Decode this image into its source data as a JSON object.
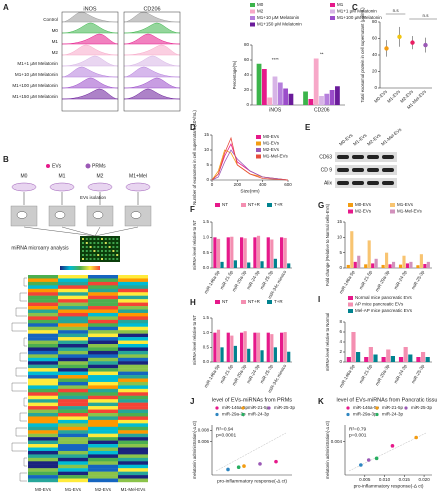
{
  "figure": {
    "panel_letters": [
      "A",
      "B",
      "C",
      "D",
      "E",
      "F",
      "G",
      "H",
      "I",
      "J",
      "K"
    ],
    "flow": {
      "headers": [
        "iNOS",
        "CD206"
      ],
      "rows": [
        "Control",
        "M0",
        "M1",
        "M2",
        "M1+1 μM Melatonin",
        "M1+10 μM Melatonin",
        "M1+100 μM Melatonin",
        "M1+150 μM Melatonin"
      ]
    },
    "diagram": {
      "legend": [
        "EVs",
        "PRMs"
      ],
      "groups": [
        "M0",
        "M1",
        "M2",
        "M1+Mel"
      ],
      "step": "EVs isolation",
      "analysis": "miRNA microarry analysis"
    },
    "heatmap": {
      "columns": [
        "M0-EVs",
        "M1-EVs",
        "M2-EVs",
        "M1-Mel-EVs"
      ]
    },
    "blot": {
      "lanes": [
        "M0-EVs",
        "M1-EVs",
        "M2-EVs",
        "M1-Mel-EVs"
      ],
      "rows": [
        "CD63",
        "CD 9",
        "Alix"
      ]
    }
  },
  "chart_data": [
    {
      "type": "bar",
      "ylabel": "Percentage(%)",
      "categories": [
        "iNOS",
        "CD206"
      ],
      "series": [
        {
          "name": "M0",
          "color": "#3cb44b",
          "values": [
            55,
            18
          ]
        },
        {
          "name": "M1",
          "color": "#e6198a",
          "values": [
            48,
            8
          ]
        },
        {
          "name": "M2",
          "color": "#f7a8c8",
          "values": [
            10,
            62
          ]
        },
        {
          "name": "M1+1 μM Melatonin",
          "color": "#d7b4e6",
          "values": [
            38,
            12
          ]
        },
        {
          "name": "M1+10 μM Melatonin",
          "color": "#b57edc",
          "values": [
            30,
            15
          ]
        },
        {
          "name": "M1+100 μM Melatonin",
          "color": "#9b4dca",
          "values": [
            22,
            20
          ]
        },
        {
          "name": "M1+150 μM Melatonin",
          "color": "#6a1b9a",
          "values": [
            15,
            25
          ]
        }
      ],
      "ylim": [
        0,
        80
      ],
      "yticks": [
        0,
        20,
        40,
        60,
        80
      ],
      "annotations": [
        "****",
        "**"
      ]
    },
    {
      "type": "dot",
      "ylabel": "Total exosomal protein in cell supernatant (μg/mL)",
      "categories": [
        "M0-EVs",
        "M1-EVs",
        "M2-EVs",
        "M1-Mel-EVs"
      ],
      "values": [
        48,
        62,
        55,
        52
      ],
      "errors": [
        10,
        12,
        8,
        9
      ],
      "colors": [
        "#f39c12",
        "#f1c40f",
        "#e91e63",
        "#9b59b6"
      ],
      "ylim": [
        0,
        80
      ],
      "yticks": [
        0,
        20,
        40,
        60,
        80
      ],
      "annotations": [
        "n.s",
        "n.s"
      ]
    },
    {
      "type": "line",
      "xlabel": "Size(nm)",
      "ylabel": "Number of exosomes in cell supernatant (10⁸/mL)",
      "x": [
        0,
        50,
        100,
        150,
        200,
        300,
        400,
        600
      ],
      "series": [
        {
          "name": "M0-EVs",
          "color": "#e6198a",
          "values": [
            0,
            2,
            8,
            12,
            6,
            3,
            1,
            0
          ]
        },
        {
          "name": "M1-EVs",
          "color": "#f39c12",
          "values": [
            0,
            3,
            10,
            9,
            5,
            2,
            1,
            0
          ]
        },
        {
          "name": "M2-EVs",
          "color": "#9b59b6",
          "values": [
            0,
            1,
            6,
            10,
            7,
            3,
            1,
            0
          ]
        },
        {
          "name": "M1-Mel-EVs",
          "color": "#e74c3c",
          "values": [
            0,
            2,
            9,
            14,
            5,
            2,
            0.5,
            0
          ]
        }
      ],
      "xlim": [
        0,
        600
      ],
      "xticks": [
        0,
        200,
        400,
        600
      ],
      "ylim": [
        0,
        15
      ],
      "yticks": [
        0,
        5,
        10,
        15
      ]
    },
    {
      "type": "bar",
      "ylabel": "miRNA level relative to NT",
      "categories": [
        "miR-146a-5p",
        "miR-21-5p",
        "miR-29a-3p",
        "miR-24-3p",
        "miR-25-3p",
        "miR-34c mimics"
      ],
      "series": [
        {
          "name": "NT",
          "color": "#e6198a",
          "values": [
            1,
            1,
            1,
            1,
            1,
            1
          ]
        },
        {
          "name": "NT+R",
          "color": "#f48fb1",
          "values": [
            0.95,
            1.02,
            0.97,
            1.05,
            0.93,
            0.98
          ]
        },
        {
          "name": "T+R",
          "color": "#00838f",
          "values": [
            0.2,
            0.25,
            0.18,
            0.22,
            0.3,
            0.15
          ]
        }
      ],
      "ylim": [
        0,
        1.5
      ],
      "yticks": [
        {
          "value": 0,
          "label": "0.0"
        },
        0.5,
        {
          "value": 1,
          "label": "1.0"
        },
        1.5
      ]
    },
    {
      "type": "bar",
      "ylabel": "Fold change (Relative to Normal cells-EVs)",
      "categories": [
        "miR-146a-5p",
        "miR-21-5p",
        "miR-29a-3p",
        "miR-24-3p",
        "miR-25-3p"
      ],
      "series": [
        {
          "name": "M0-EVs",
          "color": "#f39c12",
          "values": [
            1,
            1.2,
            1,
            1.1,
            0.9
          ]
        },
        {
          "name": "M1-EVs",
          "color": "#f8c471",
          "values": [
            12,
            9,
            5,
            4,
            4.5
          ]
        },
        {
          "name": "M2-EVs",
          "color": "#e6198a",
          "values": [
            2,
            1.5,
            1.2,
            1.5,
            1.3
          ]
        },
        {
          "name": "M1-Mel-EVs",
          "color": "#d291bc",
          "values": [
            4,
            3,
            2,
            2,
            2
          ]
        }
      ],
      "ylim": [
        0,
        15
      ],
      "yticks": [
        0,
        5,
        10,
        15
      ]
    },
    {
      "type": "bar",
      "ylabel": "miRNA level relative to NT",
      "categories": [
        "miR-146a-5p",
        "miR-21-5p",
        "miR-29a-3p",
        "miR-24-3p",
        "miR-25-3p",
        "miR-34c mimics"
      ],
      "series": [
        {
          "name": "NT",
          "color": "#e6198a",
          "values": [
            1,
            1,
            1,
            1,
            1,
            1
          ]
        },
        {
          "name": "NT+R",
          "color": "#f48fb1",
          "values": [
            1.1,
            0.9,
            1.05,
            1,
            0.95,
            1.02
          ]
        },
        {
          "name": "T+R",
          "color": "#00838f",
          "values": [
            0.5,
            0.55,
            0.45,
            0.4,
            0.5,
            0.35
          ]
        }
      ],
      "ylim": [
        0,
        1.5
      ],
      "yticks": [
        {
          "value": 0,
          "label": "0.0"
        },
        0.5,
        {
          "value": 1,
          "label": "1.0"
        },
        1.5
      ]
    },
    {
      "type": "bar",
      "ylabel": "miRNA level relative to Normal",
      "categories": [
        "miR-146a-5p",
        "miR-21-5p",
        "miR-29a-3p",
        "miR-24-3p",
        "miR-25-3p"
      ],
      "series": [
        {
          "name": "Normal mice pancreatic EVs",
          "color": "#e6198a",
          "values": [
            1,
            1,
            1,
            1,
            1
          ]
        },
        {
          "name": "AP mice pancreatic EVs",
          "color": "#f48fb1",
          "values": [
            6,
            3,
            2.5,
            3,
            2
          ]
        },
        {
          "name": "Mel-AP mice pancreatic EVs",
          "color": "#00838f",
          "values": [
            2,
            1.5,
            1.2,
            1.5,
            1
          ]
        }
      ],
      "ylim": [
        0,
        8
      ],
      "yticks": [
        0,
        2,
        4,
        6,
        8
      ]
    },
    {
      "type": "scatter",
      "title": "level of EVs-miRNAs from PRMs",
      "xlabel": "pro-inflammatory response(-Δ ct)",
      "ylabel": "melatonin administration(-Δ ct)",
      "series": [
        {
          "name": "miR-146a-5p",
          "color": "#e6198a",
          "x": [
            0.012
          ],
          "values": [
            0.0024
          ]
        },
        {
          "name": "miR-21-5p",
          "color": "#f39c12",
          "x": [
            0.006
          ],
          "values": [
            0.0016
          ]
        },
        {
          "name": "miR-25-3p",
          "color": "#9b59b6",
          "x": [
            0.009
          ],
          "values": [
            0.002
          ]
        },
        {
          "name": "miR-29a-3p",
          "color": "#2e86c1",
          "x": [
            0.003
          ],
          "values": [
            0.001
          ]
        },
        {
          "name": "miR-24-3p",
          "color": "#27ae60",
          "x": [
            0.005
          ],
          "values": [
            0.0014
          ]
        }
      ],
      "xlim": [
        0,
        0.015
      ],
      "ylim": [
        0,
        0.009
      ],
      "yticks": [
        0.006,
        0.008
      ],
      "annotations": [
        "R²=0.94",
        "p<0.0001"
      ]
    },
    {
      "type": "scatter",
      "title": "level of EVs-miRNAs from Pancratic tissue",
      "xlabel": "pro-inflammatory response(-Δ ct)",
      "ylabel": "melatonin administration(-Δ ct)",
      "series": [
        {
          "name": "miR-146a-5p",
          "color": "#e6198a",
          "x": [
            0.012
          ],
          "values": [
            0.0035
          ]
        },
        {
          "name": "miR-21-5p",
          "color": "#f39c12",
          "x": [
            0.018
          ],
          "values": [
            0.0045
          ]
        },
        {
          "name": "miR-25-3p",
          "color": "#9b59b6",
          "x": [
            0.006
          ],
          "values": [
            0.0018
          ]
        },
        {
          "name": "miR-29a-3p",
          "color": "#2e86c1",
          "x": [
            0.004
          ],
          "values": [
            0.0012
          ]
        },
        {
          "name": "miR-24-3p",
          "color": "#27ae60",
          "x": [
            0.008
          ],
          "values": [
            0.002
          ]
        }
      ],
      "xlim": [
        0,
        0.022
      ],
      "xticks": [
        0.005,
        {
          "value": 0.01,
          "label": "0.010"
        },
        0.015,
        {
          "value": 0.02,
          "label": "0.020"
        }
      ],
      "ylim": [
        0,
        0.006
      ],
      "yticks": [
        0.004
      ],
      "annotations": [
        "R²=0.79",
        "p=0.001"
      ]
    }
  ]
}
